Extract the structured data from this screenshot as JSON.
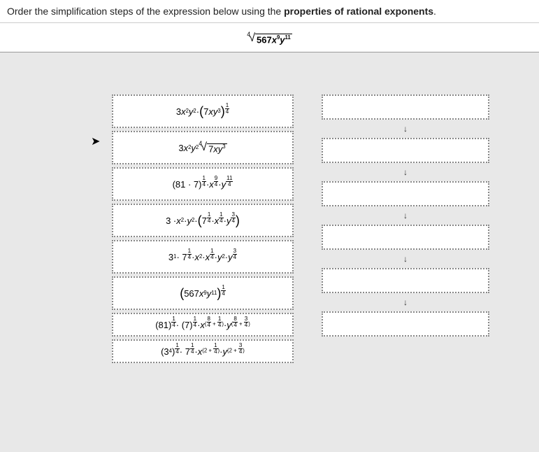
{
  "header": {
    "prompt_a": "Order the simplification steps of the expression below using the ",
    "prompt_b": "properties of rational exponents",
    "prompt_c": "."
  },
  "main_expr": {
    "root_index": "4",
    "radicand_coef": "567",
    "radicand_x": "x",
    "radicand_x_exp": "9",
    "radicand_y": "y",
    "radicand_y_exp": "11"
  },
  "items": [
    {
      "h": "lh",
      "html": "3<i>x</i><sup>2</sup><i>y</i><sup>2</sup> · <span class='par'>(</span>7<i>x</i><i>y</i><sup>3</sup><span class='par'>)</span><span class='supfrac'><span class='n'>1</span><span class='d'>4</span></span>"
    },
    {
      "h": "lh",
      "html": "3<i>x</i><sup>2</sup><i>y</i><sup>2</sup> <span class='sroot'><span class='ix'>4</span><span class='sr'>√</span><span class='ov'>7<i>x</i><i>y</i><sup>3</sup></span></span>"
    },
    {
      "h": "lh",
      "html": "(81 · 7)<span class='supfrac'><span class='n'>1</span><span class='d'>4</span></span> · <i>x</i><span class='supfrac'><span class='n'>9</span><span class='d'>4</span></span> · <i>y</i><span class='supfrac'><span class='n'>11</span><span class='d'>4</span></span>"
    },
    {
      "h": "lh",
      "html": "3 · <i>x</i><sup>2</sup> · <i>y</i><sup>2</sup> · <span class='par'>(</span>7<span class='supfrac'><span class='n'>1</span><span class='d'>4</span></span> · <i>x</i><span class='supfrac'><span class='n'>1</span><span class='d'>4</span></span> · <i>y</i><span class='supfrac'><span class='n'>3</span><span class='d'>4</span></span><span class='par'>)</span>"
    },
    {
      "h": "lh",
      "html": "3<sup>1</sup> · 7<span class='supfrac'><span class='n'>1</span><span class='d'>4</span></span> · <i>x</i><sup>2</sup> · <i>x</i><span class='supfrac'><span class='n'>1</span><span class='d'>4</span></span> · <i>y</i><sup>2</sup> · <i>y</i><span class='supfrac'><span class='n'>3</span><span class='d'>4</span></span>"
    },
    {
      "h": "lh",
      "html": "<span class='par'>(</span>567<i>x</i><sup>9</sup><i>y</i><sup>11</sup><span class='par'>)</span><span class='supfrac'><span class='n'>1</span><span class='d'>4</span></span>"
    },
    {
      "h": "sh",
      "html": "(81)<span class='supfrac'><span class='n'>1</span><span class='d'>4</span></span> · (7)<span class='supfrac'><span class='n'>1</span><span class='d'>4</span></span> · <i>x</i><sup>(<span class='supfrac'><span class='n'>8</span><span class='d'>4</span></span> + <span class='supfrac'><span class='n'>1</span><span class='d'>4</span></span>)</sup> · <i>y</i><sup>(<span class='supfrac'><span class='n'>8</span><span class='d'>4</span></span> + <span class='supfrac'><span class='n'>3</span><span class='d'>4</span></span>)</sup>"
    },
    {
      "h": "sh",
      "html": "(3<sup>4</sup>)<span class='supfrac'><span class='n'>1</span><span class='d'>4</span></span> · 7<span class='supfrac'><span class='n'>1</span><span class='d'>4</span></span> · <i>x</i><sup>(2 + <span class='supfrac'><span class='n'>1</span><span class='d'>4</span></span>)</sup> · <i>y</i><sup>(2 + <span class='supfrac'><span class='n'>3</span><span class='d'>4</span></span>)</sup>"
    }
  ],
  "drop_count": 6,
  "arrow_glyph": "↓",
  "cursor_glyph": "➤",
  "colors": {
    "page_bg": "#e8e8e8",
    "panel_bg": "#ffffff",
    "border": "#888888",
    "text": "#222222"
  }
}
